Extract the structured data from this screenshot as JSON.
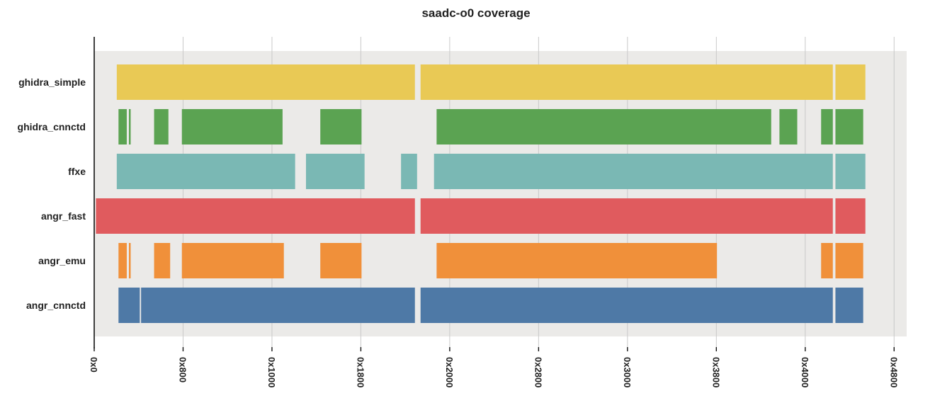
{
  "chart_data": {
    "type": "coverage",
    "title": "saadc-o0 coverage",
    "xlabel": "",
    "ylabel": "",
    "xlim": [
      0,
      18444
    ],
    "x_ticks": [
      {
        "value": 0,
        "label": "0x0"
      },
      {
        "value": 2048,
        "label": "0x800"
      },
      {
        "value": 4096,
        "label": "0x1000"
      },
      {
        "value": 6144,
        "label": "0x1800"
      },
      {
        "value": 8192,
        "label": "0x2000"
      },
      {
        "value": 10240,
        "label": "0x2800"
      },
      {
        "value": 12288,
        "label": "0x3000"
      },
      {
        "value": 14336,
        "label": "0x3800"
      },
      {
        "value": 16384,
        "label": "0x4000"
      },
      {
        "value": 18432,
        "label": "0x4800"
      }
    ],
    "background_color": "#ebeae8",
    "series": [
      {
        "name": "ghidra_simple",
        "color": "#e9c955",
        "ranges": [
          [
            520,
            7390
          ],
          [
            7520,
            17020
          ],
          [
            17080,
            17770
          ]
        ]
      },
      {
        "name": "ghidra_cnnctd",
        "color": "#5ba352",
        "ranges": [
          [
            560,
            750
          ],
          [
            800,
            840
          ],
          [
            1380,
            1710
          ],
          [
            2020,
            4340
          ],
          [
            5210,
            6160
          ],
          [
            7890,
            15600
          ],
          [
            15790,
            16200
          ],
          [
            16750,
            17020
          ],
          [
            17080,
            17720
          ]
        ]
      },
      {
        "name": "ffxe",
        "color": "#7ab8b4",
        "ranges": [
          [
            520,
            4630
          ],
          [
            4880,
            6230
          ],
          [
            7070,
            7440
          ],
          [
            7830,
            17020
          ],
          [
            17080,
            17770
          ]
        ]
      },
      {
        "name": "angr_fast",
        "color": "#e05b5e",
        "ranges": [
          [
            40,
            7390
          ],
          [
            7520,
            17020
          ],
          [
            17080,
            17770
          ]
        ]
      },
      {
        "name": "angr_emu",
        "color": "#f0903a",
        "ranges": [
          [
            560,
            750
          ],
          [
            800,
            840
          ],
          [
            1380,
            1750
          ],
          [
            2020,
            4370
          ],
          [
            5210,
            6160
          ],
          [
            7890,
            14350
          ],
          [
            16750,
            17020
          ],
          [
            17080,
            17720
          ]
        ]
      },
      {
        "name": "angr_cnnctd",
        "color": "#4e79a6",
        "ranges": [
          [
            560,
            1050
          ],
          [
            1080,
            7390
          ],
          [
            7520,
            17020
          ],
          [
            17080,
            17720
          ]
        ]
      }
    ]
  }
}
